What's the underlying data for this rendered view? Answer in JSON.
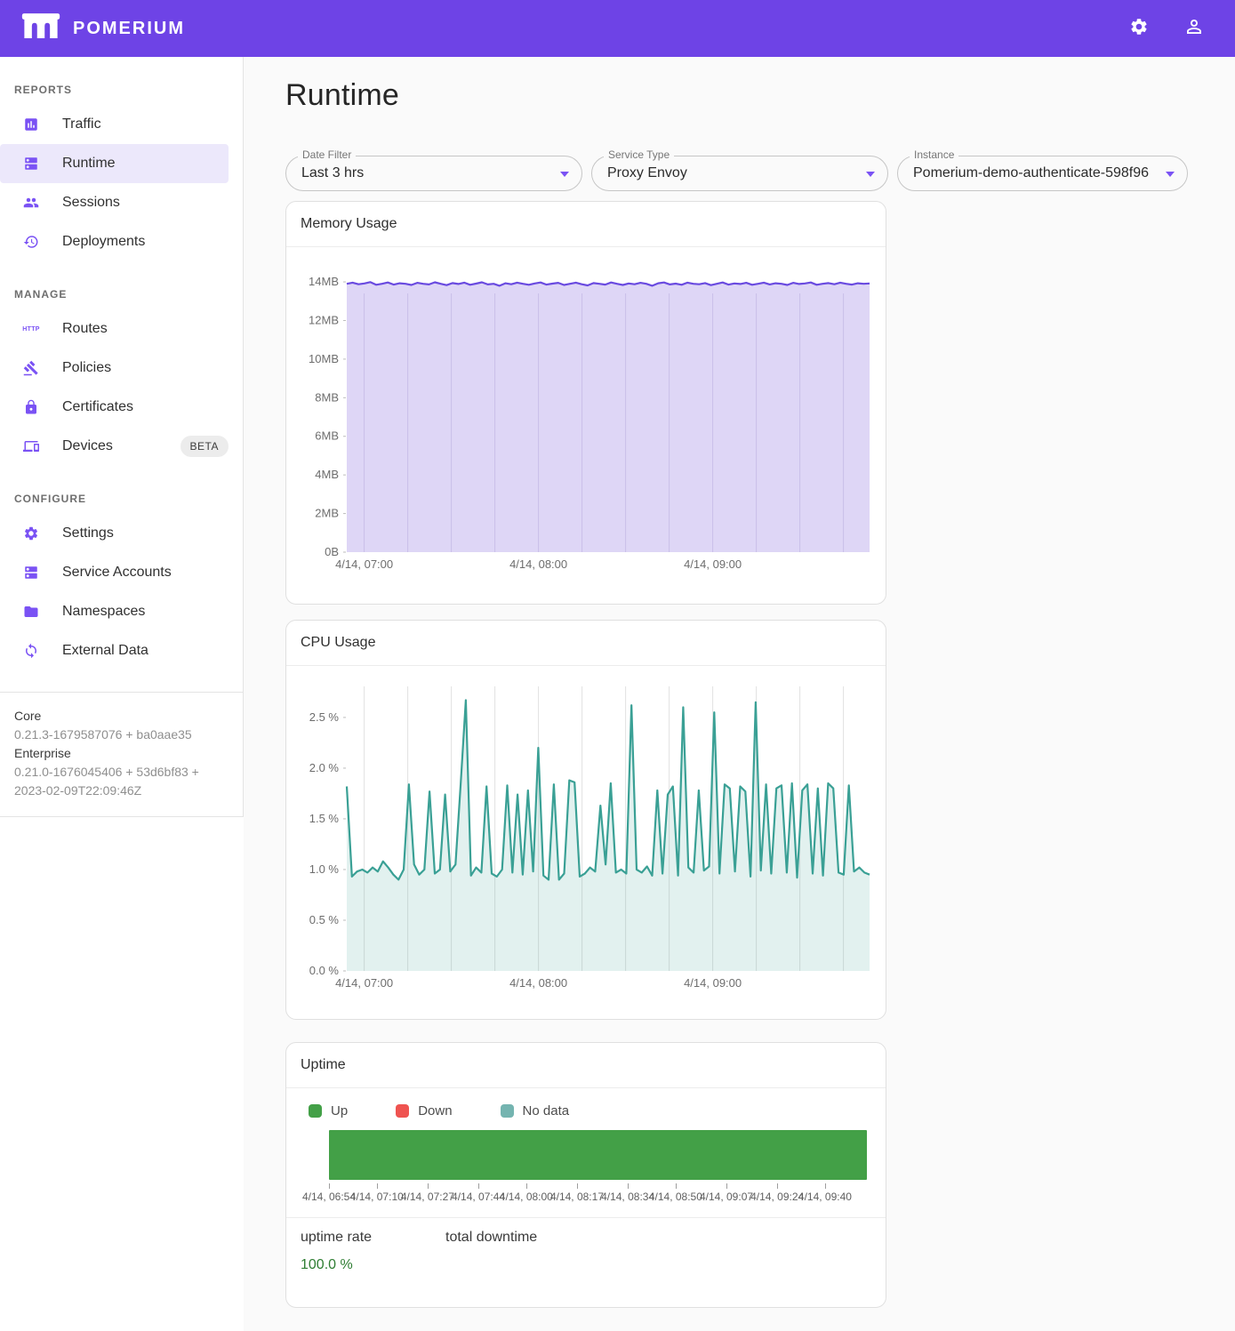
{
  "colors": {
    "header": "#6e43e6",
    "icon_purple": "#7a52f4",
    "selected_bg": "#ece8fb",
    "uptime_green": "#2e7d32"
  },
  "header": {
    "brand": "POMERIUM"
  },
  "sidebar": {
    "sections": [
      {
        "title": "REPORTS",
        "items": [
          {
            "label": "Traffic"
          },
          {
            "label": "Runtime",
            "selected": true
          },
          {
            "label": "Sessions"
          },
          {
            "label": "Deployments"
          }
        ]
      },
      {
        "title": "MANAGE",
        "items": [
          {
            "label": "Routes",
            "icon_text": "HTTP"
          },
          {
            "label": "Policies"
          },
          {
            "label": "Certificates"
          },
          {
            "label": "Devices",
            "badge": "BETA"
          }
        ]
      },
      {
        "title": "CONFIGURE",
        "items": [
          {
            "label": "Settings"
          },
          {
            "label": "Service Accounts"
          },
          {
            "label": "Namespaces"
          },
          {
            "label": "External Data"
          }
        ]
      }
    ],
    "version": {
      "core_label": "Core",
      "core_value": "0.21.3-1679587076 + ba0aae35",
      "enterprise_label": "Enterprise",
      "enterprise_value": "0.21.0-1676045406 + 53d6bf83 + 2023-02-09T22:09:46Z"
    }
  },
  "main": {
    "title": "Runtime",
    "filters": [
      {
        "label": "Date Filter",
        "value": "Last 3 hrs"
      },
      {
        "label": "Service Type",
        "value": "Proxy Envoy"
      },
      {
        "label": "Instance",
        "value": "Pomerium-demo-authenticate-598f96"
      }
    ],
    "cards": {
      "memory_title": "Memory Usage",
      "cpu_title": "CPU Usage",
      "uptime_title": "Uptime"
    },
    "uptime": {
      "legend": [
        {
          "label": "Up",
          "color": "#43a047"
        },
        {
          "label": "Down",
          "color": "#ef5350"
        },
        {
          "label": "No data",
          "color": "#74b4b0"
        }
      ],
      "stats": {
        "rate_label": "uptime rate",
        "downtime_label": "total downtime",
        "rate_value": "100.0 %",
        "downtime_value": ""
      }
    }
  },
  "chart_data": [
    {
      "type": "area",
      "title": "Memory Usage",
      "unit": "MB",
      "ylim": [
        0,
        14.97
      ],
      "x_total_min": 180,
      "y_ticks": [
        {
          "v": 14,
          "label": "14MB"
        },
        {
          "v": 12,
          "label": "12MB"
        },
        {
          "v": 10,
          "label": "10MB"
        },
        {
          "v": 8,
          "label": "8MB"
        },
        {
          "v": 6,
          "label": "6MB"
        },
        {
          "v": 4,
          "label": "4MB"
        },
        {
          "v": 2,
          "label": "2MB"
        },
        {
          "v": 0,
          "label": "0B"
        }
      ],
      "x_ticks": [
        {
          "min": 6,
          "label": "4/14, 07:00"
        },
        {
          "min": 66,
          "label": "4/14, 08:00"
        },
        {
          "min": 126,
          "label": "4/14, 09:00"
        }
      ],
      "line_color": "#6a4be0",
      "fill_color": "#ded6f6",
      "fill_opacity": 1,
      "grid_color": "#c9bfe9",
      "grid_over_fill": true,
      "values": [
        13.9,
        13.96,
        13.88,
        13.92,
        13.99,
        13.85,
        13.9,
        13.97,
        13.86,
        13.93,
        13.9,
        13.84,
        13.95,
        13.9,
        13.87,
        13.98,
        13.9,
        13.83,
        13.94,
        13.89,
        13.96,
        13.85,
        13.91,
        13.98,
        13.87,
        13.9,
        13.8,
        13.93,
        13.88,
        13.96,
        13.9,
        13.85,
        13.92,
        13.97,
        13.86,
        13.91,
        13.95,
        13.84,
        13.9,
        13.96,
        13.88,
        13.82,
        13.94,
        13.9,
        13.86,
        13.97,
        13.9,
        13.84,
        13.92,
        13.88,
        13.95,
        13.9,
        13.8,
        13.93,
        13.97,
        13.87,
        13.91,
        13.85,
        13.96,
        13.9,
        13.88,
        13.94,
        13.83,
        13.9,
        13.97,
        13.86,
        13.92,
        13.89,
        13.95,
        13.85,
        13.9,
        13.96,
        13.87,
        13.93,
        13.9,
        13.84,
        13.95,
        13.89,
        13.92,
        13.97,
        13.85,
        13.9,
        13.94,
        13.88,
        13.96,
        13.9,
        13.86,
        13.93,
        13.9,
        13.92
      ]
    },
    {
      "type": "area",
      "title": "CPU Usage",
      "unit": "%",
      "ylim": [
        0,
        2.85
      ],
      "x_total_min": 180,
      "y_ticks": [
        {
          "v": 2.5,
          "label": "2.5 %"
        },
        {
          "v": 2.0,
          "label": "2.0 %"
        },
        {
          "v": 1.5,
          "label": "1.5 %"
        },
        {
          "v": 1.0,
          "label": "1.0 %"
        },
        {
          "v": 0.5,
          "label": "0.5 %"
        },
        {
          "v": 0.0,
          "label": "0.0 %"
        }
      ],
      "x_ticks": [
        {
          "min": 6,
          "label": "4/14, 07:00"
        },
        {
          "min": 66,
          "label": "4/14, 08:00"
        },
        {
          "min": 126,
          "label": "4/14, 09:00"
        }
      ],
      "line_color": "#3aa095",
      "fill_color": "#3aa095",
      "fill_opacity": 0.15,
      "grid_color": "#e2e2e2",
      "grid_over_fill": false,
      "values": [
        1.82,
        0.93,
        0.98,
        1.0,
        0.97,
        1.02,
        0.98,
        1.08,
        1.02,
        0.95,
        0.9,
        1.0,
        1.84,
        1.05,
        0.95,
        1.0,
        1.77,
        0.96,
        1.0,
        1.74,
        0.98,
        1.05,
        1.84,
        2.67,
        0.94,
        1.02,
        0.97,
        1.82,
        0.96,
        0.93,
        1.0,
        1.83,
        0.97,
        1.74,
        0.95,
        1.78,
        0.98,
        2.2,
        0.94,
        0.9,
        1.84,
        0.9,
        0.96,
        1.88,
        1.86,
        0.93,
        0.96,
        1.02,
        0.98,
        1.63,
        1.05,
        1.85,
        0.97,
        1.0,
        0.96,
        2.62,
        1.0,
        0.97,
        1.03,
        0.94,
        1.78,
        0.96,
        1.74,
        1.82,
        0.94,
        2.6,
        1.02,
        0.97,
        1.78,
        0.99,
        1.03,
        2.55,
        0.96,
        1.84,
        1.8,
        0.98,
        1.82,
        1.77,
        0.93,
        2.65,
        0.99,
        1.84,
        0.96,
        1.8,
        1.83,
        0.97,
        1.85,
        0.92,
        1.78,
        1.84,
        0.96,
        1.8,
        0.94,
        1.85,
        1.8,
        0.97,
        0.95,
        1.83,
        0.98,
        1.02,
        0.97,
        0.95
      ]
    },
    {
      "type": "timeline",
      "title": "Uptime",
      "x_total_min": 180,
      "segments": [
        {
          "label": "Up",
          "start_min": 0,
          "end_min": 180,
          "color": "#43a047"
        }
      ],
      "x_ticks": [
        {
          "min": 0,
          "label": "4/14, 06:54"
        },
        {
          "min": 16,
          "label": "4/14, 07:10"
        },
        {
          "min": 33,
          "label": "4/14, 07:27"
        },
        {
          "min": 50,
          "label": "4/14, 07:44"
        },
        {
          "min": 66,
          "label": "4/14, 08:00"
        },
        {
          "min": 83,
          "label": "4/14, 08:17"
        },
        {
          "min": 100,
          "label": "4/14, 08:34"
        },
        {
          "min": 116,
          "label": "4/14, 08:50"
        },
        {
          "min": 133,
          "label": "4/14, 09:07"
        },
        {
          "min": 150,
          "label": "4/14, 09:24"
        },
        {
          "min": 166,
          "label": "4/14, 09:40"
        }
      ],
      "uptime_rate": "100.0 %",
      "total_downtime": ""
    }
  ]
}
